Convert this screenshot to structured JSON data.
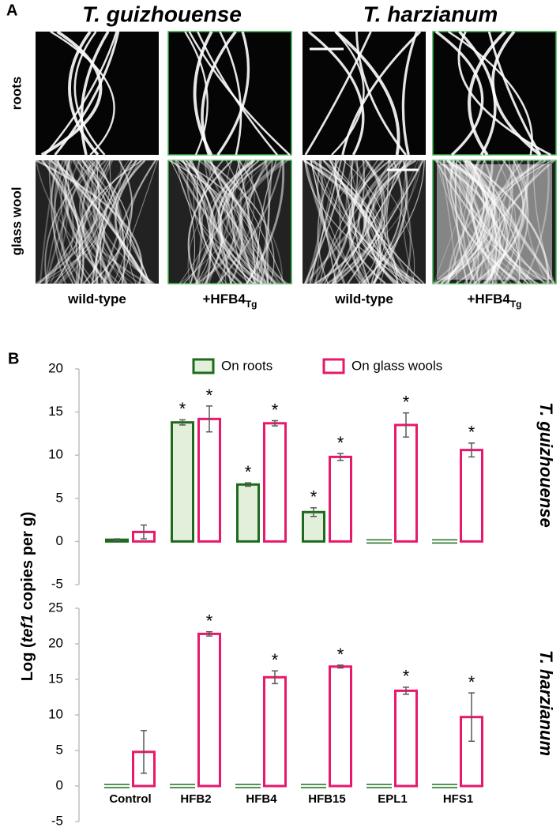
{
  "panel_a": {
    "label": "A",
    "columns": [
      "T. guizhouense",
      "T. harzianum"
    ],
    "rows": [
      "roots",
      "glass wool"
    ],
    "images": [
      {
        "label": "wild-type"
      },
      {
        "label": "+HFB4",
        "subscript": "Tg"
      },
      {
        "label": "wild-type"
      },
      {
        "label": "+HFB4",
        "subscript": "Tg"
      }
    ]
  },
  "panel_b": {
    "label": "B",
    "y_label_parts": [
      "Log (",
      "tef1",
      " copies per g)"
    ]
  },
  "chart_data": [
    {
      "type": "bar",
      "title": "T. guizhouense",
      "ylim": [
        -5,
        20
      ],
      "yticks": [
        -5,
        0,
        5,
        10,
        15,
        20
      ],
      "series": [
        {
          "name": "On roots",
          "color": "#1e6b1e",
          "fill": "#e2efda",
          "values": [
            0.2,
            13.8,
            6.6,
            3.4,
            0,
            0
          ],
          "errors": [
            0.1,
            0.3,
            0.2,
            0.5,
            null,
            null
          ],
          "marks": [
            null,
            "*",
            "*",
            "*",
            null,
            null
          ]
        },
        {
          "name": "On glass wools",
          "color": "#e8196b",
          "fill": "#ffffff",
          "values": [
            1.1,
            14.2,
            13.7,
            9.8,
            13.5,
            10.6
          ],
          "errors": [
            0.8,
            1.5,
            0.3,
            0.4,
            1.4,
            0.8
          ],
          "marks": [
            null,
            "*",
            "*",
            "*",
            "*",
            "*"
          ]
        }
      ]
    },
    {
      "type": "bar",
      "title": "T. harzianum",
      "ylim": [
        -5,
        25
      ],
      "yticks": [
        -5,
        0,
        5,
        10,
        15,
        20,
        25
      ],
      "categories": [
        "Control",
        "HFB2",
        "HFB4",
        "HFB15",
        "EPL1",
        "HFS1"
      ],
      "series": [
        {
          "color": "#1e6b1e",
          "fill": "#e2efda",
          "values": [
            0,
            0,
            0,
            0,
            0,
            0
          ]
        },
        {
          "color": "#e8196b",
          "fill": "#ffffff",
          "values": [
            4.8,
            21.4,
            15.3,
            16.8,
            13.4,
            9.7
          ],
          "errors": [
            3.0,
            0.3,
            0.9,
            0.2,
            0.5,
            3.4
          ],
          "marks": [
            null,
            "*",
            "*",
            "*",
            "*",
            "*"
          ]
        }
      ]
    }
  ]
}
